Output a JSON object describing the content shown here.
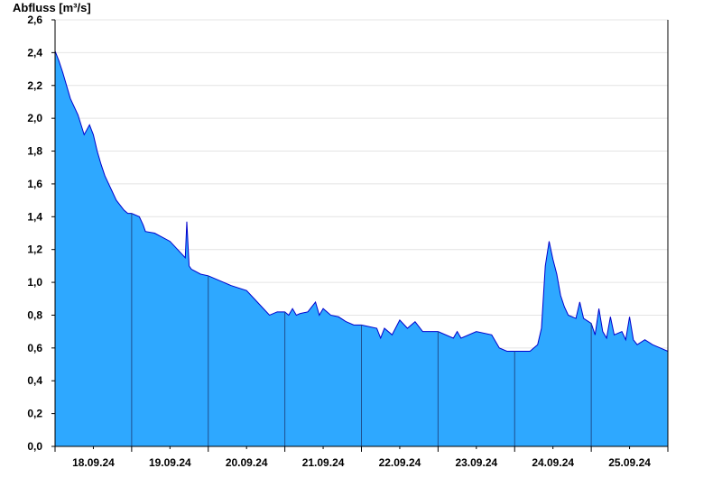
{
  "chart_data": {
    "type": "area",
    "title": "",
    "ylabel": "Abfluss [m³/s]",
    "xlabel": "",
    "ylim": [
      0,
      2.6
    ],
    "y_ticks": [
      "0,0",
      "0,2",
      "0,4",
      "0,6",
      "0,8",
      "1,0",
      "1,2",
      "1,4",
      "1,6",
      "1,8",
      "2,0",
      "2,2",
      "2,4",
      "2,6"
    ],
    "x_day_labels": [
      "18.09.24",
      "19.09.24",
      "20.09.24",
      "21.09.24",
      "22.09.24",
      "23.09.24",
      "24.09.24",
      "25.09.24"
    ],
    "x_range_days": [
      0,
      8
    ],
    "grid": true,
    "colors": {
      "fill": "#2ea8ff",
      "line": "#0000cc",
      "grid": "#e4e4e4",
      "axis": "#000000"
    },
    "series": [
      {
        "x": [
          0.0,
          0.05,
          0.1,
          0.15,
          0.2,
          0.3,
          0.38,
          0.45,
          0.5,
          0.55,
          0.6,
          0.65,
          0.7,
          0.75,
          0.8,
          0.85,
          0.9,
          0.95,
          1.0,
          1.1,
          1.15,
          1.18,
          1.3,
          1.5,
          1.6,
          1.7,
          1.72,
          1.75,
          1.78,
          1.82,
          1.9,
          2.0,
          2.2,
          2.3,
          2.5,
          2.6,
          2.7,
          2.8,
          2.9,
          3.0,
          3.05,
          3.1,
          3.15,
          3.2,
          3.3,
          3.4,
          3.45,
          3.5,
          3.6,
          3.7,
          3.8,
          3.9,
          4.0,
          4.2,
          4.25,
          4.3,
          4.4,
          4.5,
          4.6,
          4.7,
          4.8,
          5.0,
          5.2,
          5.25,
          5.3,
          5.5,
          5.7,
          5.8,
          5.9,
          6.0,
          6.2,
          6.3,
          6.35,
          6.4,
          6.45,
          6.5,
          6.55,
          6.6,
          6.65,
          6.7,
          6.8,
          6.85,
          6.9,
          7.0,
          7.05,
          7.1,
          7.15,
          7.2,
          7.25,
          7.3,
          7.4,
          7.45,
          7.5,
          7.55,
          7.6,
          7.7,
          7.8,
          7.9,
          8.0
        ],
        "values": [
          2.41,
          2.35,
          2.28,
          2.2,
          2.12,
          2.02,
          1.9,
          1.96,
          1.9,
          1.8,
          1.72,
          1.65,
          1.6,
          1.55,
          1.5,
          1.47,
          1.44,
          1.42,
          1.42,
          1.4,
          1.35,
          1.31,
          1.3,
          1.25,
          1.2,
          1.15,
          1.37,
          1.1,
          1.08,
          1.07,
          1.05,
          1.04,
          1.0,
          0.98,
          0.95,
          0.9,
          0.85,
          0.8,
          0.82,
          0.82,
          0.8,
          0.84,
          0.8,
          0.81,
          0.82,
          0.88,
          0.8,
          0.84,
          0.8,
          0.79,
          0.76,
          0.74,
          0.74,
          0.72,
          0.66,
          0.72,
          0.68,
          0.77,
          0.72,
          0.76,
          0.7,
          0.7,
          0.66,
          0.7,
          0.66,
          0.7,
          0.68,
          0.6,
          0.58,
          0.58,
          0.58,
          0.62,
          0.72,
          1.1,
          1.25,
          1.14,
          1.05,
          0.92,
          0.85,
          0.8,
          0.78,
          0.88,
          0.78,
          0.75,
          0.68,
          0.84,
          0.7,
          0.66,
          0.79,
          0.68,
          0.7,
          0.65,
          0.79,
          0.65,
          0.62,
          0.65,
          0.62,
          0.6,
          0.58
        ]
      }
    ]
  }
}
